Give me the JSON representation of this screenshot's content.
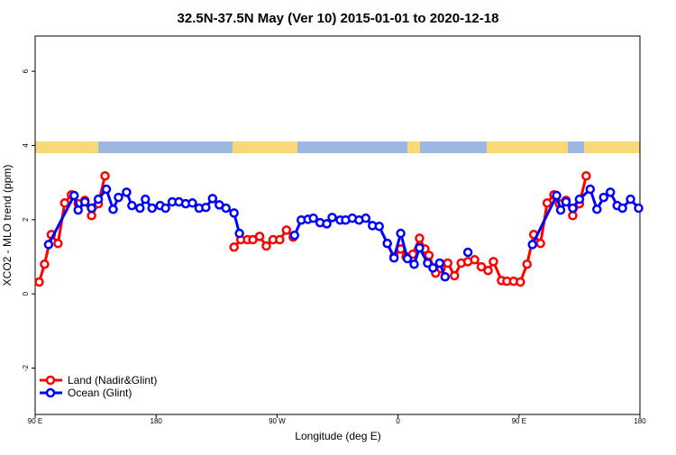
{
  "chart_data": {
    "type": "line",
    "title": "32.5N-37.5N May (Ver 10)   2015-01-01 to 2020-12-18",
    "x_label": "Longitude (deg E)",
    "y_label": "XCO2 - MLO trend (ppm)",
    "xlim": [
      90,
      540
    ],
    "xticks": [
      {
        "value": 90,
        "label": "90 E"
      },
      180,
      {
        "value": 270,
        "label": "90 W"
      },
      {
        "value": 360,
        "label": "0"
      },
      {
        "value": 450,
        "label": "90 E"
      },
      {
        "value": 540,
        "label": "180"
      }
    ],
    "ylim": [
      -3.25,
      6.95
    ],
    "yticks": [
      -2,
      0,
      2,
      4,
      6
    ],
    "legend": "bottom-left",
    "series": [
      {
        "name": "Land (Nadir&Glint)",
        "color": "#ff0000",
        "x": [
          93,
          97,
          102,
          107,
          112,
          117,
          122,
          127,
          132,
          137,
          142,
          null,
          238,
          243,
          248,
          252,
          257,
          262,
          267,
          272,
          277,
          282,
          null,
          352,
          357,
          362,
          366,
          371,
          376,
          380,
          383,
          388,
          392,
          397,
          402,
          407,
          412,
          417,
          422,
          427,
          431,
          437,
          441,
          446,
          451,
          456,
          461,
          466,
          471,
          476,
          480,
          485,
          490,
          495,
          500
        ],
        "values": [
          0.32,
          0.8,
          1.6,
          1.36,
          2.45,
          2.67,
          2.43,
          2.52,
          2.11,
          2.43,
          3.18,
          null,
          1.26,
          1.46,
          1.46,
          1.46,
          1.55,
          1.29,
          1.46,
          1.46,
          1.72,
          1.53,
          null,
          1.36,
          1.0,
          1.21,
          1.0,
          1.07,
          1.5,
          1.21,
          1.04,
          0.56,
          0.68,
          0.83,
          0.49,
          0.83,
          0.87,
          0.92,
          0.73,
          0.63,
          0.87,
          0.36,
          0.34,
          0.34,
          0.32,
          0.8,
          1.6,
          1.36,
          2.45,
          2.67,
          2.43,
          2.52,
          2.11,
          2.43,
          3.18
        ]
      },
      {
        "name": "Ocean (Glint)",
        "color": "#0000ff",
        "x": [
          100,
          119,
          122,
          127,
          132,
          137,
          143,
          148,
          152,
          158,
          162,
          168,
          172,
          177,
          183,
          187,
          192,
          197,
          202,
          207,
          212,
          217,
          222,
          227,
          232,
          238,
          242,
          null,
          283,
          288,
          293,
          297,
          302,
          307,
          311,
          317,
          321,
          326,
          331,
          336,
          341,
          346,
          352,
          357,
          362,
          367,
          372,
          376,
          382,
          386,
          391,
          395,
          null,
          412,
          null,
          460,
          478,
          481,
          485,
          490,
          495,
          503,
          508,
          513,
          518,
          523,
          527,
          533,
          539
        ],
        "values": [
          1.33,
          2.65,
          2.26,
          2.48,
          2.31,
          2.55,
          2.82,
          2.28,
          2.6,
          2.74,
          2.38,
          2.31,
          2.55,
          2.31,
          2.38,
          2.31,
          2.48,
          2.48,
          2.43,
          2.45,
          2.31,
          2.33,
          2.57,
          2.4,
          2.31,
          2.18,
          1.63,
          null,
          1.58,
          1.99,
          2.01,
          2.04,
          1.92,
          1.89,
          2.06,
          1.99,
          1.99,
          2.04,
          1.99,
          2.04,
          1.84,
          1.82,
          1.36,
          0.97,
          1.63,
          0.95,
          0.8,
          1.24,
          0.83,
          0.7,
          0.83,
          0.46,
          null,
          1.12,
          null,
          1.33,
          2.65,
          2.26,
          2.48,
          2.31,
          2.55,
          2.82,
          2.28,
          2.6,
          2.74,
          2.38,
          2.31,
          2.55,
          2.31
        ]
      }
    ]
  }
}
